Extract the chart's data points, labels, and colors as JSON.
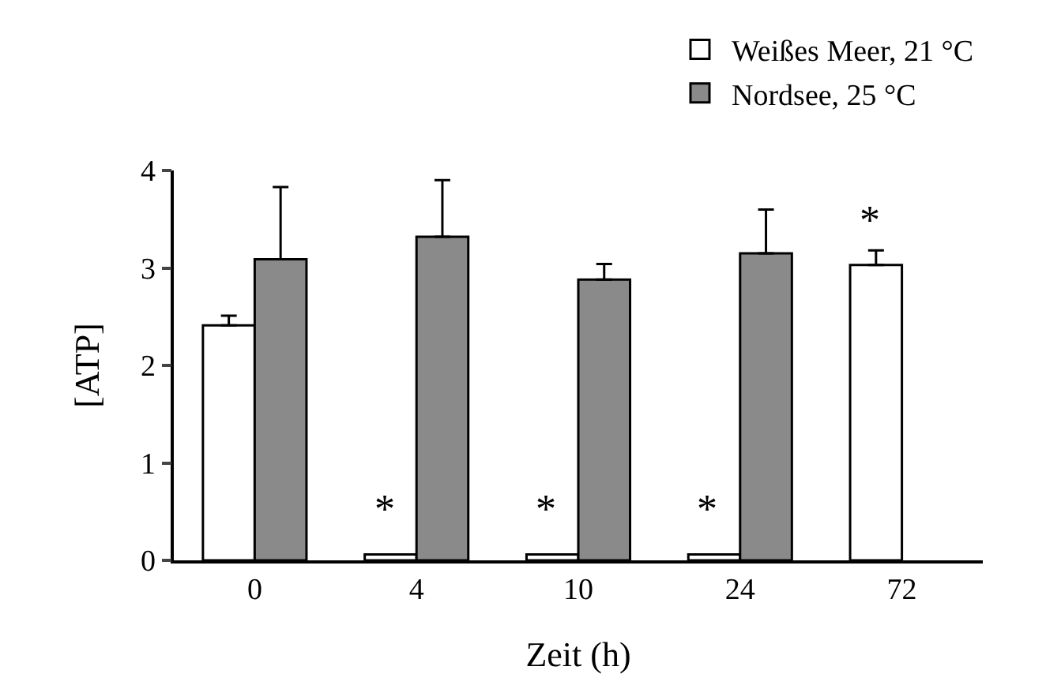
{
  "chart_data": {
    "type": "bar",
    "xlabel": "Zeit (h)",
    "ylabel": "[ATP]",
    "categories": [
      "0",
      "4",
      "10",
      "24",
      "72"
    ],
    "series": [
      {
        "name": "Weißes Meer, 21 °C",
        "color": "#ffffff",
        "values": [
          2.41,
          0.06,
          0.06,
          0.06,
          3.03
        ],
        "errors": [
          [
            2.41,
            2.51
          ],
          null,
          null,
          null,
          [
            3.03,
            3.18
          ]
        ]
      },
      {
        "name": "Nordsee, 25 °C",
        "color": "#8a8a8a",
        "values": [
          3.09,
          3.32,
          2.88,
          3.15,
          null
        ],
        "errors": [
          [
            3.09,
            3.83
          ],
          [
            3.32,
            3.9
          ],
          [
            2.88,
            3.04
          ],
          [
            3.15,
            3.6
          ],
          null
        ]
      }
    ],
    "ylim": [
      0,
      4
    ],
    "yticks": [
      0,
      1,
      2,
      3,
      4
    ],
    "grid": false,
    "legend": "top right",
    "annotations": [
      {
        "text": "*",
        "x": "4",
        "y": 0.06
      },
      {
        "text": "*",
        "x": "10",
        "y": 0.06
      },
      {
        "text": "*",
        "x": "24",
        "y": 0.06
      },
      {
        "text": "*",
        "x": "72",
        "y": 3.03
      }
    ]
  }
}
